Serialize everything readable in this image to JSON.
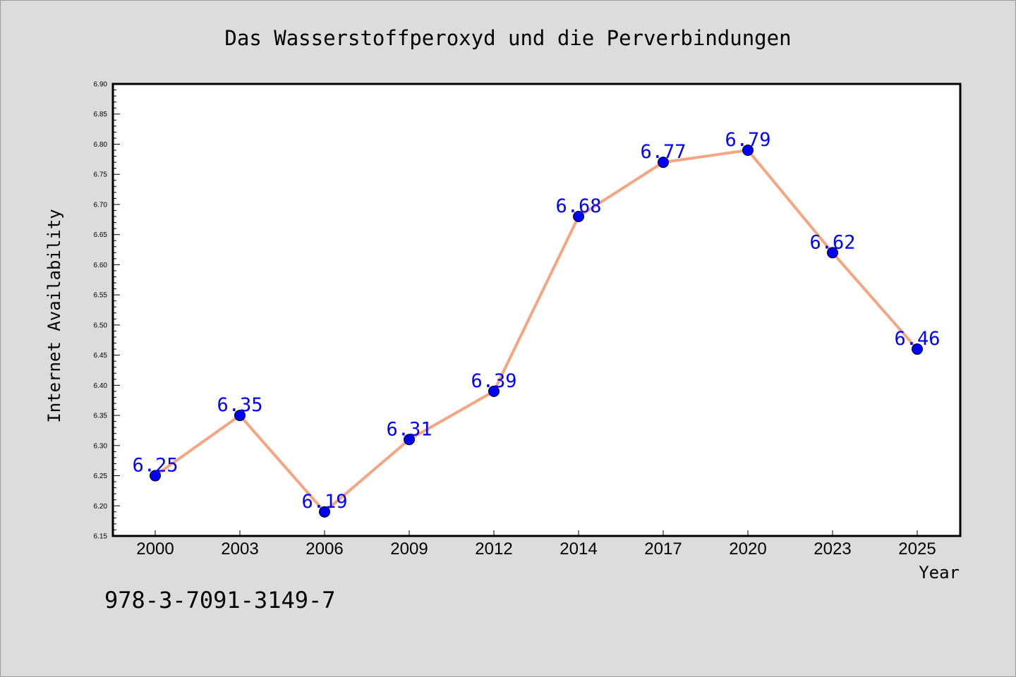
{
  "chart_data": {
    "type": "line",
    "title": "Das Wasserstoffperoxyd und die Perverbindungen",
    "xlabel": "Year",
    "ylabel": "Internet Availability",
    "categories": [
      "2000",
      "2003",
      "2006",
      "2009",
      "2012",
      "2014",
      "2017",
      "2020",
      "2023",
      "2025"
    ],
    "values": [
      6.25,
      6.35,
      6.19,
      6.31,
      6.39,
      6.68,
      6.77,
      6.79,
      6.62,
      6.46
    ],
    "data_labels": [
      "6.25",
      "6.35",
      "6.19",
      "6.31",
      "6.39",
      "6.68",
      "6.77",
      "6.79",
      "6.62",
      "6.46"
    ],
    "ylim": [
      6.15,
      6.9
    ],
    "yticks": [
      "6.15",
      "6.20",
      "6.25",
      "6.30",
      "6.35",
      "6.40",
      "6.45",
      "6.50",
      "6.55",
      "6.60",
      "6.65",
      "6.70",
      "6.75",
      "6.80",
      "6.85",
      "6.90"
    ],
    "grid": false,
    "line_color": "#f4a582",
    "marker_color": "#0000ff",
    "label_color": "#0000ff",
    "plot_background": "#ffffff",
    "page_background": "#dcdcdc"
  },
  "footer": {
    "isbn": "978-3-7091-3149-7"
  }
}
